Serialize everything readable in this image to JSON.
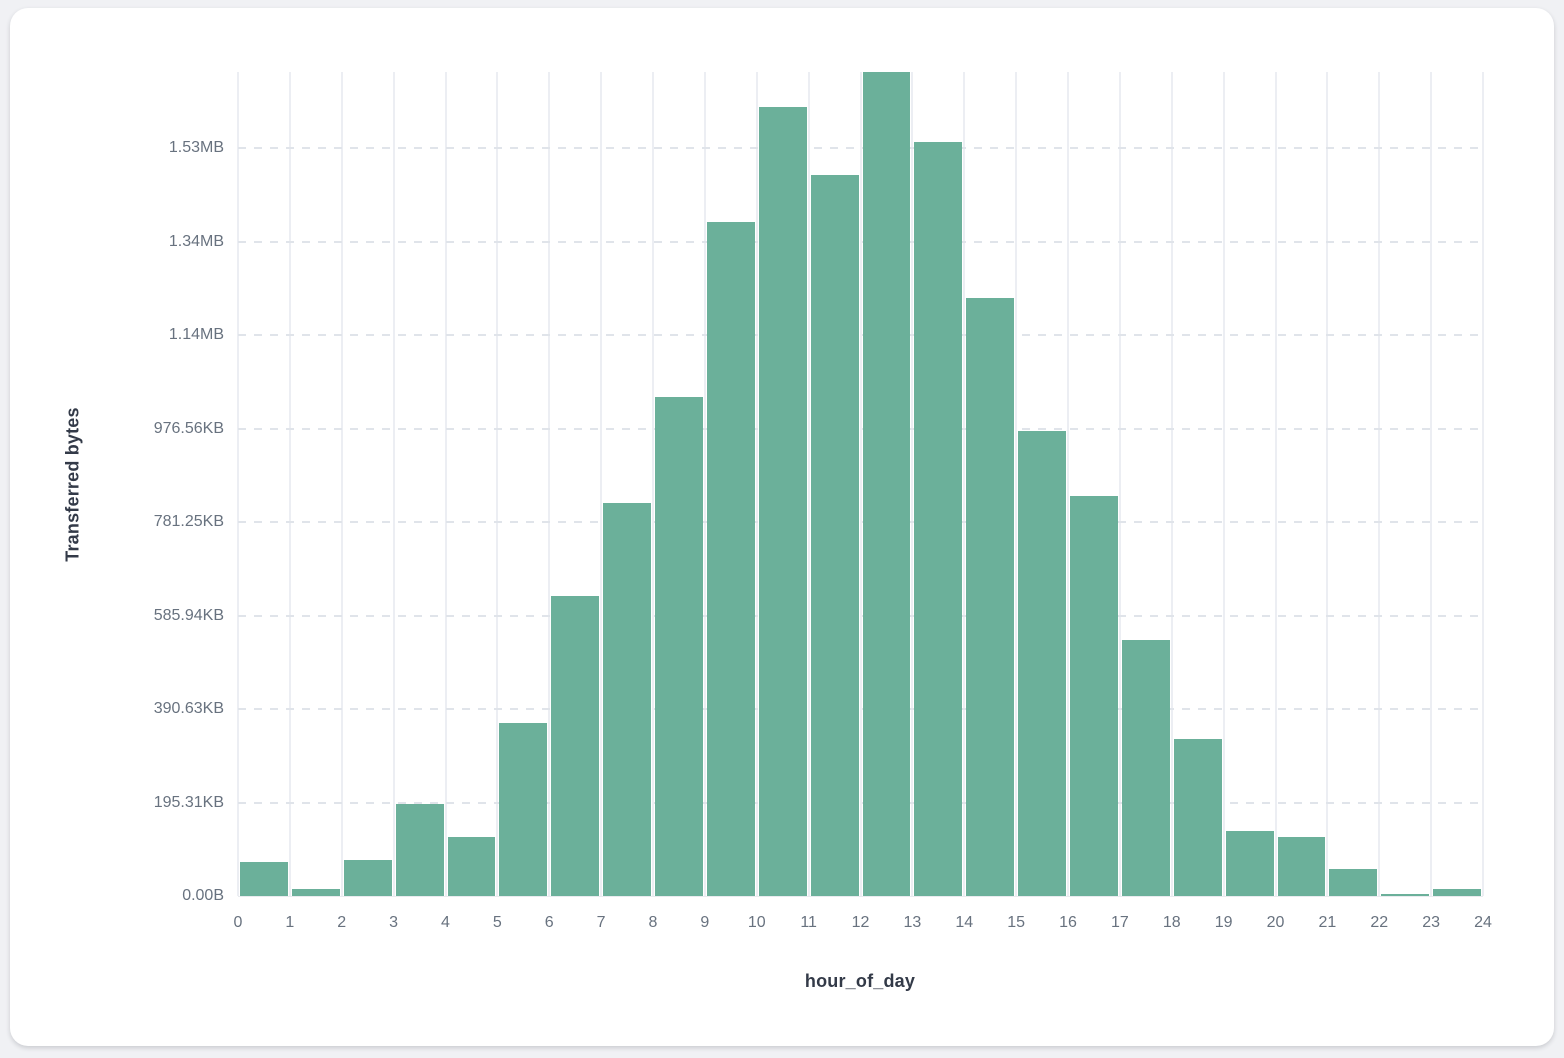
{
  "page": {
    "background": "#f0f1f4"
  },
  "card": {
    "background": "#ffffff"
  },
  "chart_data": {
    "type": "bar",
    "title": "",
    "xlabel": "hour_of_day",
    "ylabel": "Transferred bytes",
    "x": [
      0,
      1,
      2,
      3,
      4,
      5,
      6,
      7,
      8,
      9,
      10,
      11,
      12,
      13,
      14,
      15,
      16,
      17,
      18,
      19,
      20,
      21,
      22,
      23
    ],
    "values": [
      73400,
      14900,
      77000,
      196100,
      126300,
      369400,
      642400,
      839900,
      1066800,
      1442200,
      1688500,
      1543300,
      1763400,
      1613100,
      1278700,
      995500,
      856300,
      546900,
      335200,
      139700,
      125600,
      58400,
      4900,
      14300
    ],
    "unit": "bytes",
    "x_tick_labels": [
      "0",
      "1",
      "2",
      "3",
      "4",
      "5",
      "6",
      "7",
      "8",
      "9",
      "10",
      "11",
      "12",
      "13",
      "14",
      "15",
      "16",
      "17",
      "18",
      "19",
      "20",
      "21",
      "22",
      "23",
      "24"
    ],
    "y_tick_labels": [
      "0.00B",
      "195.31KB",
      "390.63KB",
      "585.94KB",
      "781.25KB",
      "976.56KB",
      "1.14MB",
      "1.34MB",
      "1.53MB"
    ],
    "y_tick_values_bytes": [
      0,
      200000,
      400000,
      600000,
      800000,
      1000000,
      1200000,
      1400000,
      1600000
    ],
    "ylim": [
      0,
      1763400
    ],
    "xlim": [
      0,
      24
    ],
    "grid": true,
    "legend": "none",
    "bar_color": "#6bb09a"
  }
}
